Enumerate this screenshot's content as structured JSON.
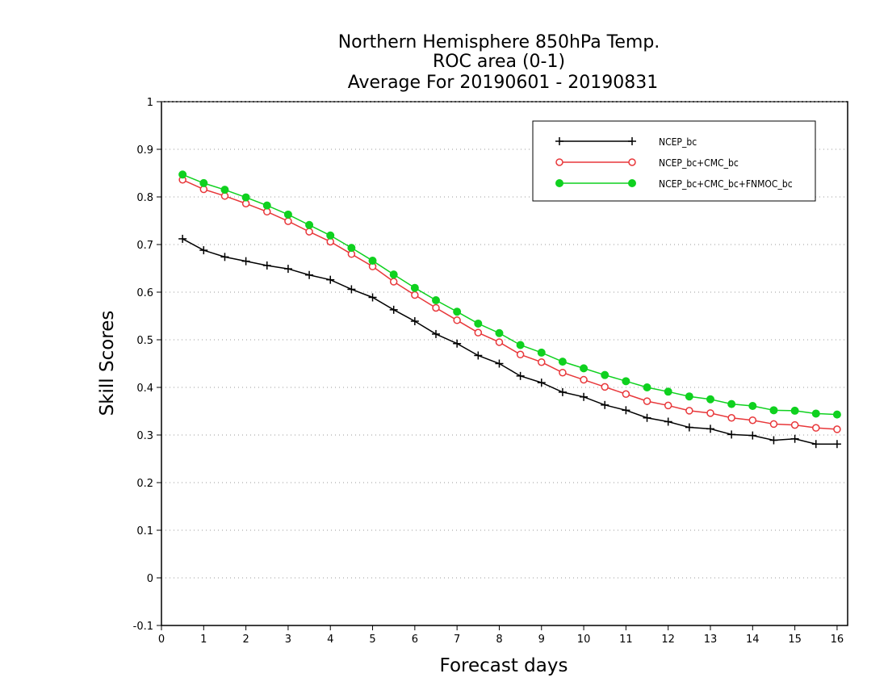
{
  "chart_data": {
    "type": "line",
    "title": [
      "Northern Hemisphere 850hPa Temp.",
      "ROC area (0-1)",
      "Average For 20190601 - 20190831"
    ],
    "xlabel": "Forecast days",
    "ylabel": "Skill Scores",
    "xlim": [
      0,
      16.25
    ],
    "ylim": [
      -0.1,
      1
    ],
    "xticks": [
      0,
      1,
      2,
      3,
      4,
      5,
      6,
      7,
      8,
      9,
      10,
      11,
      12,
      13,
      14,
      15,
      16
    ],
    "yticks": [
      -0.1,
      0,
      0.1,
      0.2,
      0.3,
      0.4,
      0.5,
      0.6,
      0.7,
      0.8,
      0.9,
      1
    ],
    "ytick_labels": [
      "-0.1",
      "0",
      "0.1",
      "0.2",
      "0.3",
      "0.4",
      "0.5",
      "0.6",
      "0.7",
      "0.8",
      "0.9",
      "1"
    ],
    "grid": "horizontal dotted",
    "legend_position": "top-right",
    "x": [
      0.5,
      1,
      1.5,
      2,
      2.5,
      3,
      3.5,
      4,
      4.5,
      5,
      5.5,
      6,
      6.5,
      7,
      7.5,
      8,
      8.5,
      9,
      9.5,
      10,
      10.5,
      11,
      11.5,
      12,
      12.5,
      13,
      13.5,
      14,
      14.5,
      15,
      15.5,
      16
    ],
    "series": [
      {
        "name": "NCEP_bc",
        "color": "#000000",
        "marker": "plus",
        "values": [
          0.712,
          0.688,
          0.674,
          0.665,
          0.656,
          0.649,
          0.636,
          0.626,
          0.606,
          0.589,
          0.563,
          0.539,
          0.512,
          0.492,
          0.467,
          0.45,
          0.424,
          0.41,
          0.39,
          0.38,
          0.363,
          0.352,
          0.336,
          0.328,
          0.316,
          0.313,
          0.301,
          0.299,
          0.289,
          0.292,
          0.281,
          0.281
        ]
      },
      {
        "name": "NCEP_bc+CMC_bc",
        "color": "#e8373a",
        "marker": "open-circle",
        "values": [
          0.836,
          0.816,
          0.802,
          0.786,
          0.769,
          0.749,
          0.727,
          0.706,
          0.68,
          0.654,
          0.622,
          0.594,
          0.567,
          0.541,
          0.515,
          0.495,
          0.469,
          0.453,
          0.431,
          0.416,
          0.401,
          0.386,
          0.371,
          0.362,
          0.351,
          0.346,
          0.336,
          0.331,
          0.323,
          0.321,
          0.315,
          0.312
        ]
      },
      {
        "name": "NCEP_bc+CMC_bc+FNMOC_bc",
        "color": "#0fd11f",
        "marker": "filled-circle",
        "values": [
          0.847,
          0.829,
          0.815,
          0.799,
          0.782,
          0.763,
          0.741,
          0.719,
          0.693,
          0.666,
          0.637,
          0.609,
          0.583,
          0.559,
          0.534,
          0.514,
          0.489,
          0.473,
          0.454,
          0.44,
          0.426,
          0.413,
          0.4,
          0.391,
          0.381,
          0.375,
          0.365,
          0.361,
          0.352,
          0.351,
          0.345,
          0.343
        ]
      }
    ]
  }
}
